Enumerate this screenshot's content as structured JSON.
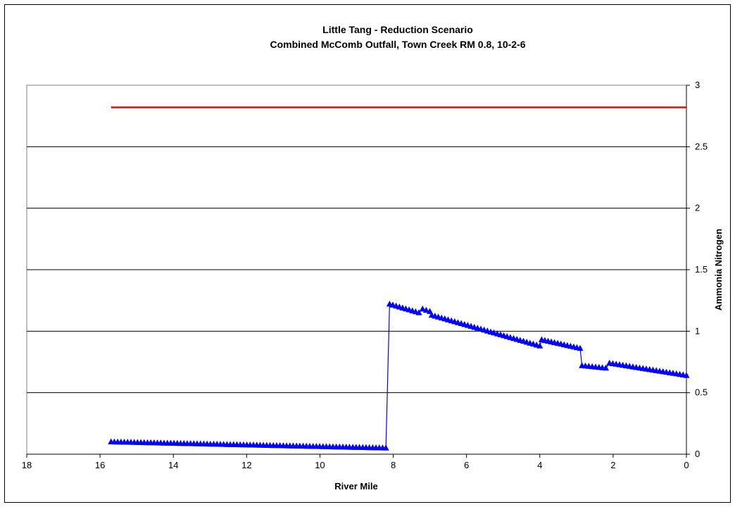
{
  "chart_data": {
    "type": "line",
    "title": "Little Tang - Reduction Scenario",
    "subtitle": "Combined McComb Outfall, Town Creek RM 0.8, 10-2-6",
    "xlabel": "River Mile",
    "ylabel": "Ammonia Nitrogen",
    "xlim": [
      18,
      0
    ],
    "x_reversed": true,
    "ylim": [
      0,
      3
    ],
    "xticks": [
      18,
      16,
      14,
      12,
      10,
      8,
      6,
      4,
      2,
      0
    ],
    "yticks": [
      0,
      0.5,
      1,
      1.5,
      2,
      2.5,
      3
    ],
    "ytick_labels": [
      "0",
      "0.5",
      "1",
      "1.5",
      "2",
      "2.5",
      "3"
    ],
    "y_axis_side": "right",
    "grid": "horizontal",
    "legend": "none",
    "series": [
      {
        "color": "#ff0000",
        "marker": "none",
        "x": [
          15.7,
          0
        ],
        "values": [
          2.82,
          2.82
        ]
      },
      {
        "color": "#0000ff",
        "marker": "triangle",
        "segments": [
          {
            "x": [
              15.7,
              8.2
            ],
            "values": [
              0.1,
              0.05
            ]
          },
          {
            "x": [
              8.1,
              7.3
            ],
            "values": [
              1.22,
              1.15
            ]
          },
          {
            "x": [
              7.2,
              7.0
            ],
            "values": [
              1.18,
              1.16
            ]
          },
          {
            "x": [
              6.95,
              4.0
            ],
            "values": [
              1.13,
              0.88
            ]
          },
          {
            "x": [
              3.95,
              2.9
            ],
            "values": [
              0.93,
              0.86
            ]
          },
          {
            "x": [
              2.85,
              2.2
            ],
            "values": [
              0.72,
              0.7
            ]
          },
          {
            "x": [
              2.1,
              0
            ],
            "values": [
              0.74,
              0.64
            ]
          }
        ]
      }
    ]
  }
}
